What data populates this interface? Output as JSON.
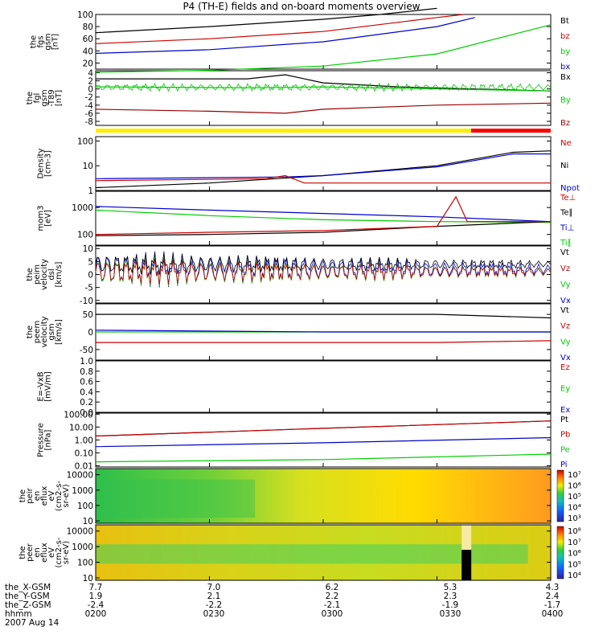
{
  "title": "P4 (TH-E) fields and on-board moments overview",
  "panels": [
    {
      "id": "fgs",
      "ylabel_lines": [
        "the",
        "fgs",
        "gsm",
        "[nT]"
      ],
      "ticks": [
        "100",
        "80",
        "60",
        "40",
        "20"
      ],
      "legend": [
        {
          "text": "Bt",
          "color": "#000000"
        },
        {
          "text": "bz",
          "color": "#cc0000"
        },
        {
          "text": "by",
          "color": "#00cc00"
        },
        {
          "text": "bx",
          "color": "#0000cc"
        }
      ]
    },
    {
      "id": "fgl",
      "ylabel_lines": [
        "the",
        "fgl",
        "gsm",
        "-T89",
        "[nT]"
      ],
      "ticks": [
        "4",
        "2",
        "0",
        "-2",
        "-4",
        "-6",
        "-8"
      ],
      "legend": [
        {
          "text": "Bx",
          "color": "#000000"
        },
        {
          "text": "By",
          "color": "#00cc00"
        },
        {
          "text": "Bz",
          "color": "#990000"
        }
      ]
    },
    {
      "id": "density",
      "ylabel_lines": [
        "Density",
        "[cm-3]"
      ],
      "ticks": [
        "100",
        "10",
        "1"
      ],
      "legend": [
        {
          "text": "Ne",
          "color": "#cc0000"
        },
        {
          "text": "Ni",
          "color": "#000000"
        },
        {
          "text": "Npot",
          "color": "#0000cc"
        }
      ]
    },
    {
      "id": "temp",
      "ylabel_lines": [
        "mom3",
        "[eV]"
      ],
      "ticks": [
        "1000",
        "100"
      ],
      "legend": [
        {
          "text": "Te⊥",
          "color": "#cc0000"
        },
        {
          "text": "Te∥",
          "color": "#000000"
        },
        {
          "text": "Ti⊥",
          "color": "#0000cc"
        },
        {
          "text": "Ti∥",
          "color": "#00cc00"
        }
      ]
    },
    {
      "id": "peim-v",
      "ylabel_lines": [
        "the",
        "peim",
        "velocity",
        "dsl",
        "[km/s]"
      ],
      "ticks": [
        "10",
        "5",
        "0",
        "-5",
        "-10"
      ],
      "legend": [
        {
          "text": "Vt",
          "color": "#000000"
        },
        {
          "text": "Vz",
          "color": "#cc0000"
        },
        {
          "text": "Vy",
          "color": "#00cc00"
        },
        {
          "text": "Vx",
          "color": "#0000cc"
        }
      ]
    },
    {
      "id": "peem-v",
      "ylabel_lines": [
        "the",
        "peem",
        "velocity",
        "gsm",
        "[km/s]"
      ],
      "ticks": [
        "50",
        "0",
        "-50"
      ],
      "legend": [
        {
          "text": "Vt",
          "color": "#000000"
        },
        {
          "text": "Vz",
          "color": "#cc0000"
        },
        {
          "text": "Vy",
          "color": "#00cc00"
        },
        {
          "text": "Vx",
          "color": "#0000cc"
        }
      ]
    },
    {
      "id": "efield",
      "ylabel_lines": [
        "E=-VxB",
        "[mV/m]"
      ],
      "ticks": [
        "1.0",
        "0.8",
        "0.6",
        "0.4",
        "0.2",
        "0.0"
      ],
      "legend": [
        {
          "text": "Ez",
          "color": "#cc0000"
        },
        {
          "text": "Ey",
          "color": "#00cc00"
        },
        {
          "text": "Ex",
          "color": "#0000cc"
        }
      ]
    },
    {
      "id": "pressure",
      "ylabel_lines": [
        "Pressure",
        "[nPa]"
      ],
      "ticks": [
        "100.00",
        "10.00",
        "1.00",
        "0.10",
        "0.01"
      ],
      "legend": [
        {
          "text": "Pt",
          "color": "#000000"
        },
        {
          "text": "Pb",
          "color": "#cc0000"
        },
        {
          "text": "Pe",
          "color": "#00cc00"
        },
        {
          "text": "Pi",
          "color": "#0000cc"
        }
      ]
    },
    {
      "id": "peir",
      "ylabel_lines": [
        "the",
        "peir",
        "en",
        "eflux",
        "eV",
        "(cm2-s-",
        "sr-eV)"
      ],
      "ticks": [
        "10000",
        "1000",
        "100",
        "10"
      ],
      "colorbar_ticks": [
        "10⁷",
        "10⁶",
        "10⁵",
        "10⁴",
        "10³"
      ]
    },
    {
      "id": "peer",
      "ylabel_lines": [
        "the",
        "peer",
        "en",
        "eflux",
        "eV",
        "(cm2-s-",
        "sr-eV)"
      ],
      "ticks": [
        "10000",
        "1000",
        "100",
        "10"
      ],
      "colorbar_ticks": [
        "10⁸",
        "10⁷",
        "10⁶",
        "10⁵",
        "10⁴"
      ]
    }
  ],
  "mode_bar": {
    "fast_color": "#ffee00",
    "slow_color": "#ff0000",
    "switch_time": "03:39"
  },
  "xaxis": {
    "row_labels": [
      "the_X-GSM",
      "the_Y-GSM",
      "the_Z-GSM",
      "hhmm",
      "2007 Aug 14"
    ],
    "ticks": [
      {
        "x": "7.7",
        "y": "1.9",
        "z": "-2.4",
        "t": "0200"
      },
      {
        "x": "7.0",
        "y": "2.1",
        "z": "-2.2",
        "t": "0230"
      },
      {
        "x": "6.2",
        "y": "2.2",
        "z": "-2.1",
        "t": "0300"
      },
      {
        "x": "5.3",
        "y": "2.3",
        "z": "-1.9",
        "t": "0330"
      },
      {
        "x": "4.3",
        "y": "2.4",
        "z": "-1.7",
        "t": "0400"
      }
    ]
  },
  "chart_data": {
    "type": "line",
    "x_range": [
      "02:00",
      "04:00"
    ],
    "series": [
      {
        "panel": "fgs",
        "name": "Bt",
        "t": [
          0,
          30,
          60,
          75,
          90
        ],
        "values": [
          70,
          80,
          92,
          100,
          110
        ]
      },
      {
        "panel": "fgs",
        "name": "bz",
        "t": [
          0,
          30,
          60,
          90,
          97
        ],
        "values": [
          52,
          60,
          72,
          95,
          100
        ]
      },
      {
        "panel": "fgs",
        "name": "bx",
        "t": [
          0,
          30,
          60,
          90,
          100
        ],
        "values": [
          36,
          42,
          55,
          80,
          95
        ]
      },
      {
        "panel": "fgs",
        "name": "by",
        "t": [
          0,
          30,
          60,
          90,
          120
        ],
        "values": [
          5,
          8,
          15,
          35,
          83
        ]
      },
      {
        "panel": "fgl",
        "name": "Bx",
        "t": [
          0,
          40,
          50,
          60,
          80,
          100,
          120
        ],
        "values": [
          2.5,
          2.5,
          3.5,
          1.5,
          0.5,
          0,
          -0.5
        ]
      },
      {
        "panel": "fgl",
        "name": "By",
        "t": [
          0,
          40,
          60,
          90,
          120
        ],
        "values": [
          0.5,
          0.3,
          0.5,
          0,
          -0.5
        ]
      },
      {
        "panel": "fgl",
        "name": "Bz",
        "t": [
          0,
          30,
          50,
          60,
          90,
          120
        ],
        "values": [
          -5,
          -5.5,
          -6,
          -5,
          -4,
          -3.5
        ]
      },
      {
        "panel": "density",
        "name": "Ni",
        "t": [
          0,
          30,
          60,
          90,
          110,
          120
        ],
        "values": [
          1.3,
          2,
          4,
          10,
          35,
          40
        ]
      },
      {
        "panel": "density",
        "name": "Npot",
        "t": [
          0,
          50,
          60,
          90,
          110,
          120
        ],
        "values": [
          3,
          3.5,
          4,
          9,
          30,
          30
        ]
      },
      {
        "panel": "density",
        "name": "Ne",
        "t": [
          0,
          45,
          50,
          55,
          70,
          120
        ],
        "values": [
          2.5,
          3,
          4,
          2,
          2,
          2
        ]
      },
      {
        "panel": "temp",
        "name": "Ti⊥",
        "t": [
          0,
          30,
          60,
          90,
          120
        ],
        "values": [
          1100,
          800,
          600,
          450,
          300
        ]
      },
      {
        "panel": "temp",
        "name": "Ti∥",
        "t": [
          0,
          30,
          60,
          90,
          120
        ],
        "values": [
          800,
          500,
          350,
          300,
          280
        ]
      },
      {
        "panel": "temp",
        "name": "Te∥",
        "t": [
          0,
          30,
          60,
          90,
          120
        ],
        "values": [
          90,
          100,
          120,
          200,
          300
        ]
      },
      {
        "panel": "temp",
        "name": "Te⊥",
        "t": [
          0,
          30,
          60,
          90,
          95,
          98,
          120
        ],
        "values": [
          100,
          120,
          140,
          200,
          2500,
          300,
          300
        ]
      },
      {
        "panel": "peem-v",
        "name": "Vt",
        "t": [
          0,
          60,
          90,
          120
        ],
        "values": [
          50,
          50,
          50,
          40
        ]
      },
      {
        "panel": "peem-v",
        "name": "Vz",
        "t": [
          0,
          60,
          90,
          120
        ],
        "values": [
          -30,
          -30,
          -30,
          -25
        ]
      },
      {
        "panel": "peem-v",
        "name": "Vy",
        "t": [
          0,
          60,
          120
        ],
        "values": [
          0,
          0,
          0
        ]
      },
      {
        "panel": "peem-v",
        "name": "Vx",
        "t": [
          0,
          60,
          120
        ],
        "values": [
          5,
          0,
          0
        ]
      },
      {
        "panel": "pressure",
        "name": "Pt",
        "t": [
          0,
          60,
          120
        ],
        "values": [
          2,
          8,
          30
        ]
      },
      {
        "panel": "pressure",
        "name": "Pb",
        "t": [
          0,
          60,
          120
        ],
        "values": [
          2,
          8,
          30
        ]
      },
      {
        "panel": "pressure",
        "name": "Pi",
        "t": [
          0,
          60,
          120
        ],
        "values": [
          0.3,
          0.6,
          1.5
        ]
      },
      {
        "panel": "pressure",
        "name": "Pe",
        "t": [
          0,
          60,
          120
        ],
        "values": [
          0.02,
          0.03,
          0.08
        ]
      }
    ]
  }
}
